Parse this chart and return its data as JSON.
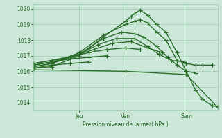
{
  "background_color": "#cce8d8",
  "plot_bg_color": "#cce8d8",
  "grid_color": "#99ccb0",
  "line_color": "#2d6e2d",
  "marker": "+",
  "markersize": 4,
  "linewidth": 1.0,
  "ylim": [
    1013.5,
    1020.3
  ],
  "yticks": [
    1014,
    1015,
    1016,
    1017,
    1018,
    1019,
    1020
  ],
  "ylabel": "Pression niveau de la mer( hPa )",
  "xtick_positions": [
    0.25,
    0.5,
    0.833
  ],
  "xtick_labels": [
    "Jeu",
    "Ven",
    "Sam"
  ],
  "xlim": [
    0.0,
    1.0
  ],
  "series": [
    {
      "x": [
        0.0,
        0.1,
        0.25,
        0.38,
        0.5,
        0.53,
        0.55,
        0.58,
        0.62,
        0.67,
        0.72,
        0.78,
        0.83,
        0.88,
        0.92,
        0.97,
        1.0
      ],
      "y": [
        1016.2,
        1016.3,
        1017.0,
        1018.2,
        1019.2,
        1019.5,
        1019.7,
        1019.9,
        1019.6,
        1019.0,
        1018.5,
        1017.2,
        1016.0,
        1014.8,
        1014.2,
        1013.8,
        1013.75
      ]
    },
    {
      "x": [
        0.0,
        0.1,
        0.25,
        0.38,
        0.5,
        0.55,
        0.58,
        0.62,
        0.67,
        0.72,
        0.78,
        0.83,
        0.88,
        0.92,
        0.97
      ],
      "y": [
        1016.3,
        1016.5,
        1017.2,
        1018.3,
        1019.0,
        1019.2,
        1019.3,
        1019.1,
        1018.5,
        1018.0,
        1016.7,
        1016.5,
        1016.4,
        1016.4,
        1016.4
      ]
    },
    {
      "x": [
        0.0,
        0.1,
        0.25,
        0.38,
        0.48,
        0.55,
        0.6,
        0.67,
        0.73,
        0.78,
        0.83,
        0.88
      ],
      "y": [
        1016.3,
        1016.5,
        1017.1,
        1018.1,
        1018.5,
        1018.4,
        1018.2,
        1017.6,
        1016.9,
        1016.4,
        1016.0,
        1015.9
      ]
    },
    {
      "x": [
        0.0,
        0.1,
        0.25,
        0.35,
        0.45,
        0.55,
        0.62,
        0.68,
        0.75,
        0.82
      ],
      "y": [
        1016.4,
        1016.6,
        1017.1,
        1017.7,
        1018.1,
        1018.1,
        1017.6,
        1017.1,
        1016.7,
        1016.6
      ]
    },
    {
      "x": [
        0.0,
        0.1,
        0.22,
        0.33,
        0.43,
        0.53,
        0.62,
        0.7
      ],
      "y": [
        1016.5,
        1016.7,
        1017.0,
        1017.4,
        1017.8,
        1017.9,
        1017.5,
        1017.2
      ]
    },
    {
      "x": [
        0.0,
        0.1,
        0.2,
        0.3,
        0.4,
        0.5,
        0.58
      ],
      "y": [
        1016.5,
        1016.7,
        1016.9,
        1017.2,
        1017.4,
        1017.5,
        1017.4
      ]
    },
    {
      "x": [
        0.0,
        0.1,
        0.2,
        0.3,
        0.4
      ],
      "y": [
        1016.4,
        1016.6,
        1016.8,
        1016.9,
        1017.0
      ]
    },
    {
      "x": [
        0.0,
        0.1,
        0.2,
        0.3
      ],
      "y": [
        1016.2,
        1016.4,
        1016.5,
        1016.6
      ]
    },
    {
      "x": [
        0.0,
        0.5,
        0.83,
        1.0
      ],
      "y": [
        1016.1,
        1016.0,
        1015.8,
        1013.7
      ]
    }
  ]
}
